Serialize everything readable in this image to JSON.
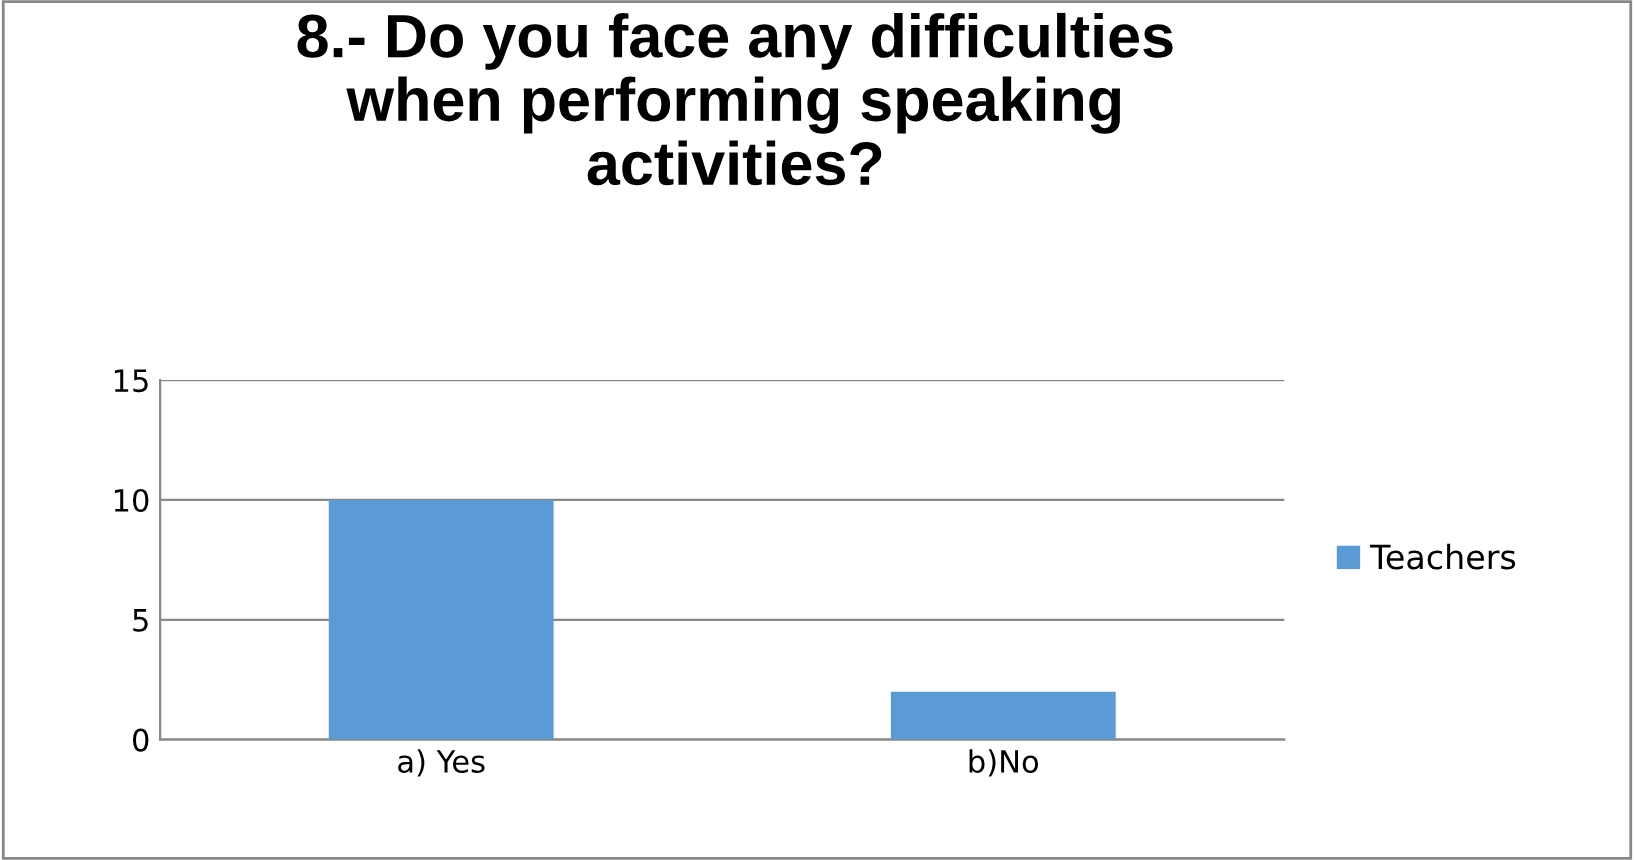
{
  "chart_data": {
    "type": "bar",
    "title": "8.- Do you face any difficulties\nwhen performing speaking\nactivities?",
    "categories": [
      "a) Yes",
      "b)No"
    ],
    "series": [
      {
        "name": "Teachers",
        "color": "#5b9bd5",
        "values": [
          10,
          2
        ]
      }
    ],
    "ylim": [
      0,
      15
    ],
    "yticks": [
      0,
      5,
      10,
      15
    ],
    "grid": "y",
    "legend": "right"
  }
}
